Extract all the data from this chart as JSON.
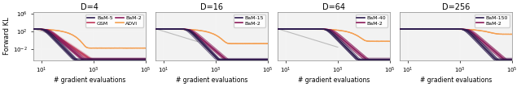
{
  "panels": [
    {
      "title": "D=4",
      "has_gsm": true,
      "has_advi": true,
      "bam_n_label": "BaM-5",
      "bam_2_label": "BaM-2",
      "gsm_label": "GSM",
      "advi_label": "ADVI",
      "bam_n_color": "#2d1b4e",
      "bam_2_color": "#8b1a5a",
      "gsm_color": "#c0385a",
      "advi_color": "#f5a050",
      "convergence_x_log": 1.2,
      "start_y": 300,
      "end_y": 3e-05,
      "advi_y": 0.015,
      "advi_start_x_log": 0.85,
      "gray_ref": true,
      "n_bundle": 30
    },
    {
      "title": "D=16",
      "has_gsm": false,
      "has_advi": true,
      "bam_n_label": "BaM-15",
      "bam_2_label": "BaM-2",
      "gsm_label": "",
      "advi_label": "",
      "bam_n_color": "#2d1b4e",
      "bam_2_color": "#8b1a5a",
      "gsm_color": "#c0385a",
      "advi_color": "#f5a050",
      "convergence_x_log": 2.0,
      "start_y": 300,
      "end_y": 3e-05,
      "advi_y": 0.15,
      "advi_start_x_log": 0.85,
      "gray_ref": true,
      "n_bundle": 30
    },
    {
      "title": "D=64",
      "has_gsm": false,
      "has_advi": true,
      "bam_n_label": "BaM-40",
      "bam_2_label": "BaM-2",
      "gsm_label": "",
      "advi_label": "",
      "bam_n_color": "#2d1b4e",
      "bam_2_color": "#8b1a5a",
      "gsm_color": "#c0385a",
      "advi_color": "#f5a050",
      "convergence_x_log": 2.7,
      "start_y": 300,
      "end_y": 3e-05,
      "advi_y": 0.5,
      "advi_start_x_log": 0.85,
      "gray_ref": true,
      "n_bundle": 30
    },
    {
      "title": "D=256",
      "has_gsm": false,
      "has_advi": true,
      "bam_n_label": "BaM-150",
      "bam_2_label": "BaM-2",
      "gsm_label": "",
      "advi_label": "",
      "bam_n_color": "#2d1b4e",
      "bam_2_color": "#8b1a5a",
      "gsm_color": "#c0385a",
      "advi_color": "#f5a050",
      "convergence_x_log": 3.3,
      "start_y": 300,
      "end_y": 3e-05,
      "advi_y": 20.0,
      "advi_start_x_log": 0.85,
      "gray_ref": false,
      "n_bundle": 30
    }
  ],
  "xlabel": "# gradient evaluations",
  "ylabel": "Forward KL",
  "xlim": [
    5.0,
    100000.0
  ],
  "ylim": [
    3e-05,
    2000000.0
  ],
  "background_color": "#f2f2f2",
  "figure_bg": "#ffffff",
  "yticks": [
    0.01,
    100.0,
    1000000.0
  ],
  "xticks": [
    10,
    1000,
    100000
  ]
}
